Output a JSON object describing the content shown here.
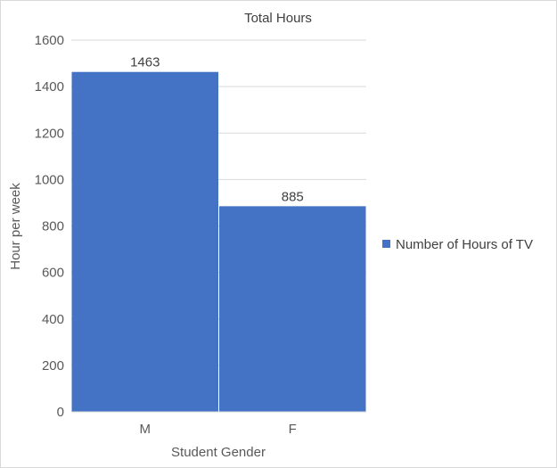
{
  "chart_data": {
    "type": "bar",
    "title": "Total Hours",
    "xlabel": "Student Gender",
    "ylabel": "Hour per week",
    "categories": [
      "M",
      "F"
    ],
    "series": [
      {
        "name": "Number of Hours of TV",
        "values": [
          1463,
          885
        ],
        "color": "#4472c4"
      }
    ],
    "data_labels": [
      "1463",
      "885"
    ],
    "ylim": [
      0,
      1600
    ],
    "yticks": [
      0,
      200,
      400,
      600,
      800,
      1000,
      1200,
      1400,
      1600
    ],
    "grid": true,
    "legend_position": "right",
    "gridline_color": "#d9d9d9"
  }
}
